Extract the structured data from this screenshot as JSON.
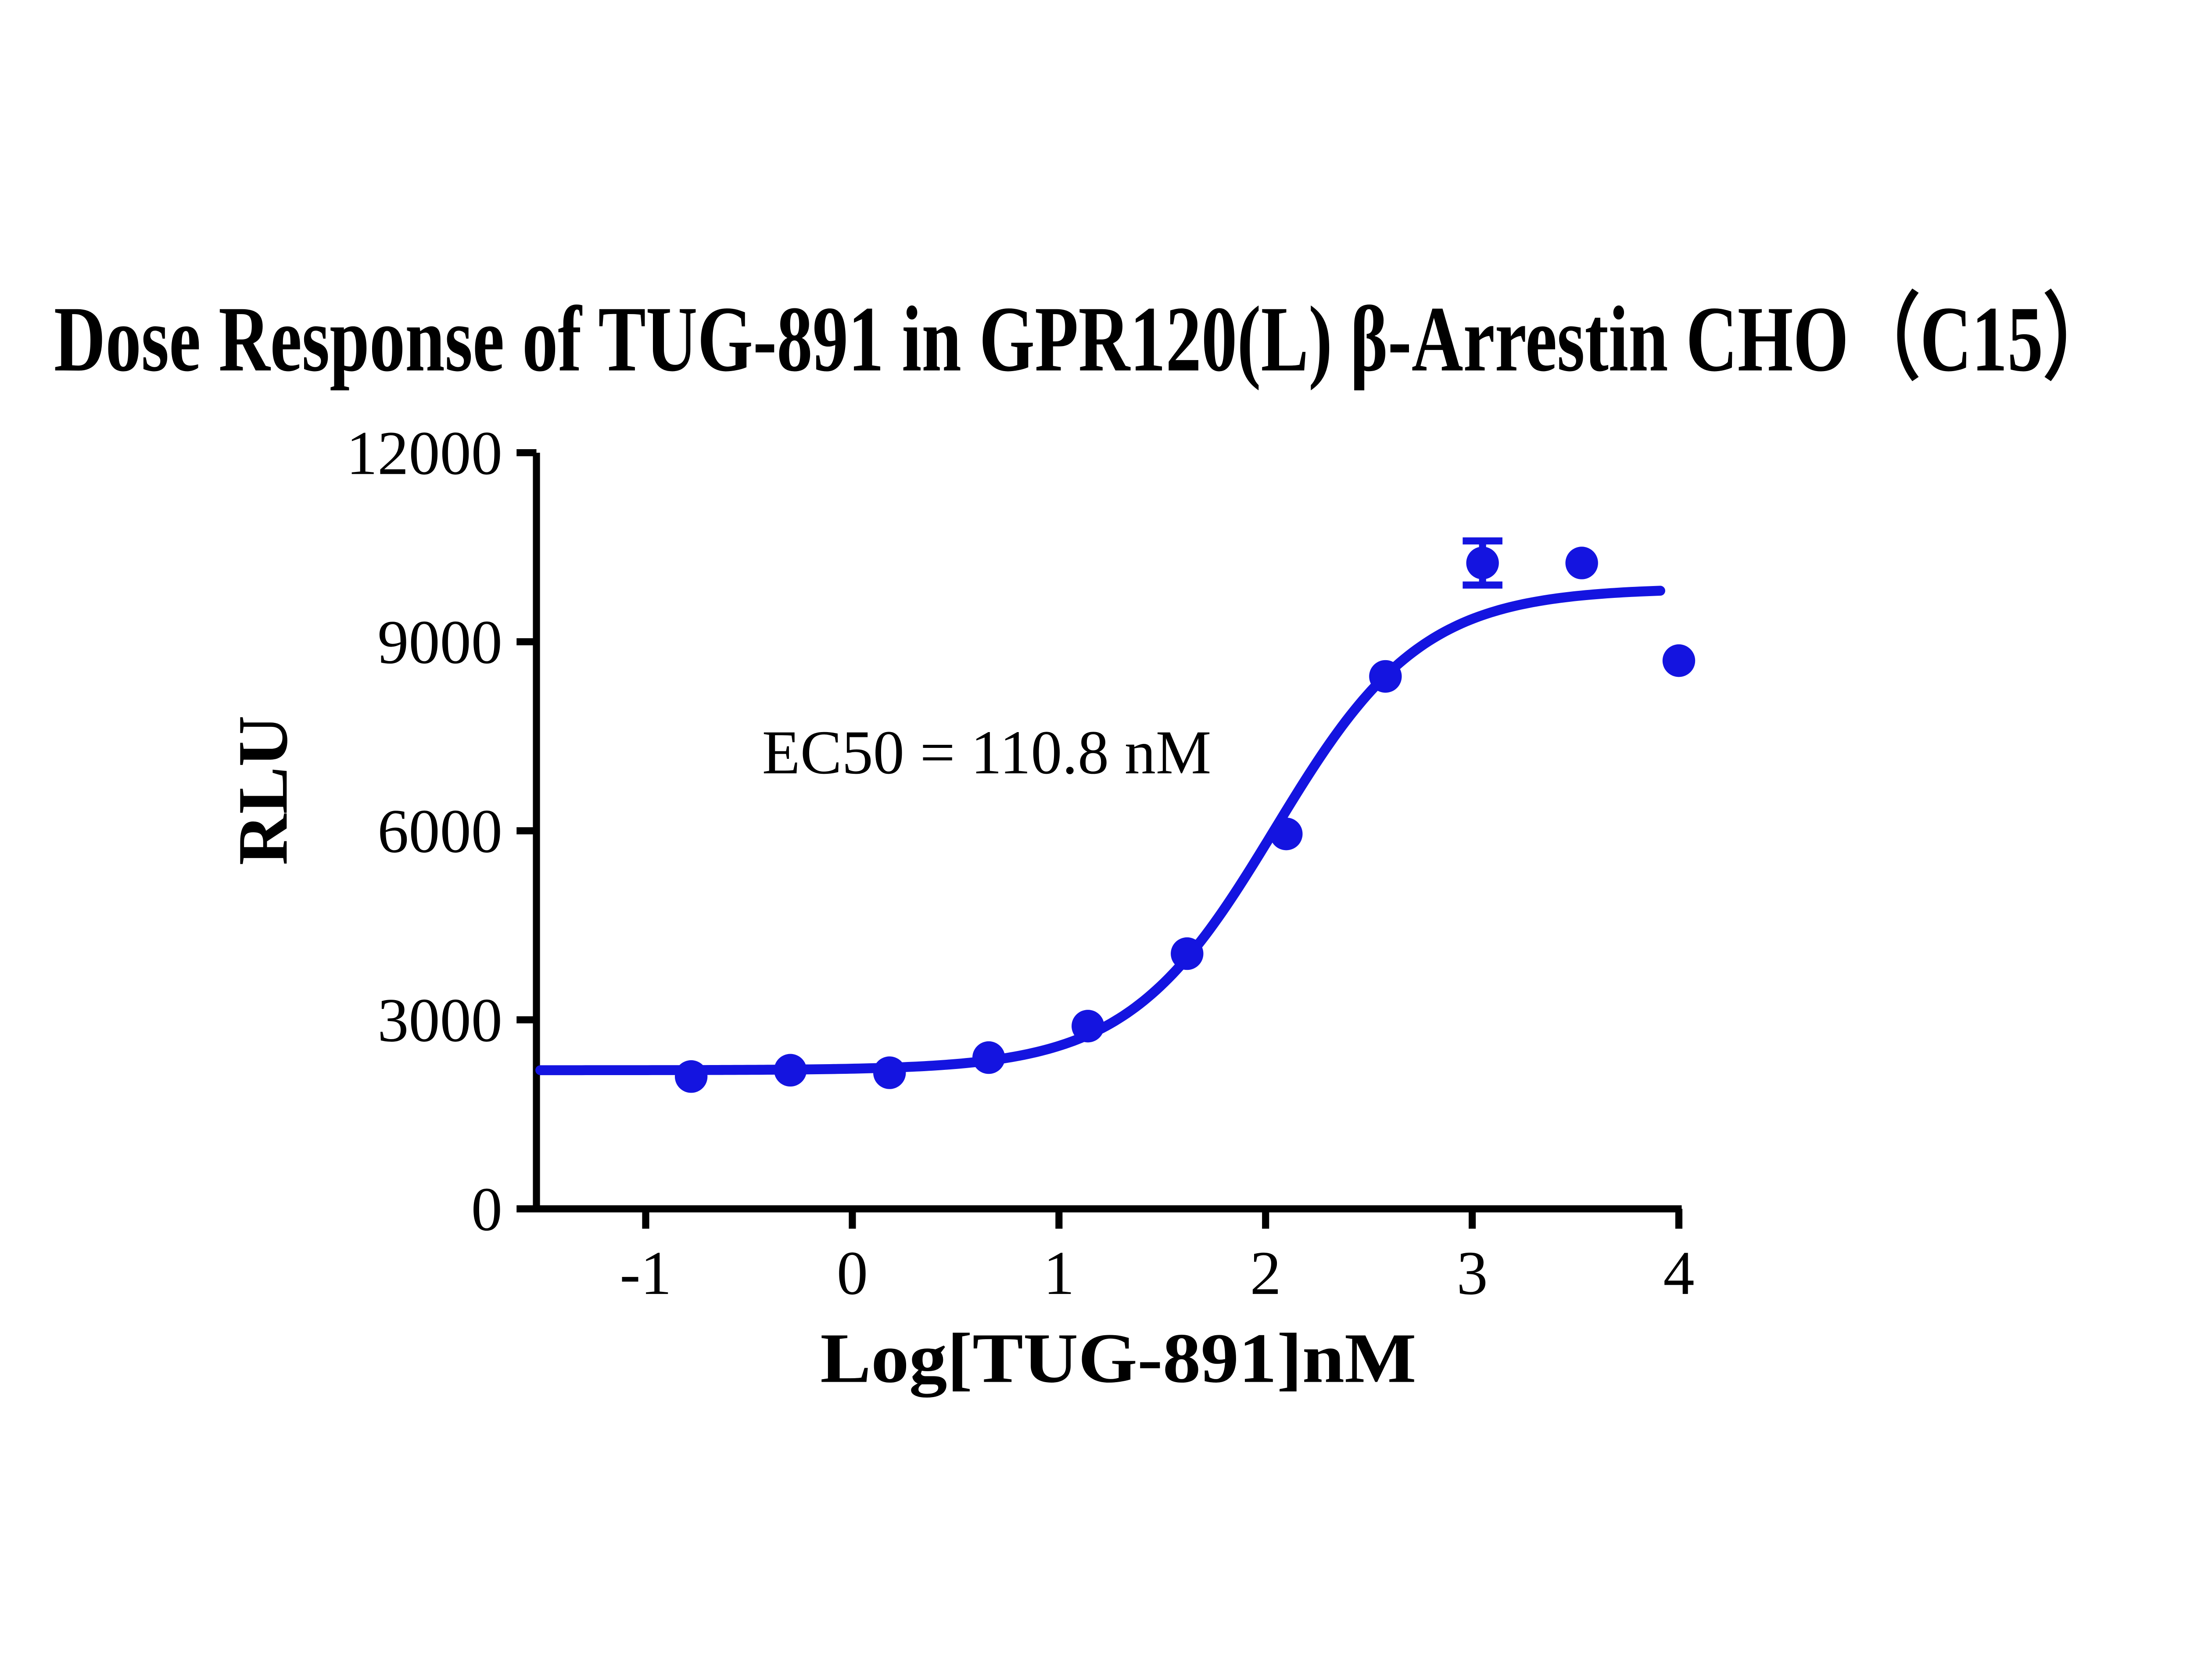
{
  "title": "Dose Response of TUG-891 in GPR120(L) β-Arrestin CHO（C15）",
  "annotation": "EC50 = 110.8 nM",
  "colors": {
    "series": "#1414e0",
    "axis": "#000000",
    "text": "#000000",
    "background": "#ffffff"
  },
  "chart_data": {
    "type": "scatter",
    "title": "Dose Response of TUG-891 in GPR120(L) β-Arrestin CHO（C15）",
    "xlabel": "Log[TUG-891]nM",
    "ylabel": "RLU",
    "annotation": "EC50 = 110.8 nM",
    "ec50_nM": 110.8,
    "xlim": [
      -1.51,
      4.07
    ],
    "ylim": [
      0,
      12000
    ],
    "xticks": [
      -1,
      0,
      1,
      2,
      3,
      4
    ],
    "yticks": [
      0,
      3000,
      6000,
      9000,
      12000
    ],
    "grid": false,
    "legend": "none",
    "series": [
      {
        "name": "TUG-891",
        "color": "#1414e0",
        "marker": "circle",
        "points": [
          {
            "x": -0.78,
            "y": 2100
          },
          {
            "x": -0.3,
            "y": 2200
          },
          {
            "x": 0.18,
            "y": 2160
          },
          {
            "x": 0.66,
            "y": 2400
          },
          {
            "x": 1.14,
            "y": 2900
          },
          {
            "x": 1.62,
            "y": 4050
          },
          {
            "x": 2.1,
            "y": 5950
          },
          {
            "x": 2.58,
            "y": 8450
          },
          {
            "x": 3.05,
            "y": 10250,
            "error": 350
          },
          {
            "x": 3.53,
            "y": 10250
          },
          {
            "x": 4.0,
            "y": 8700
          }
        ],
        "fit_curve": {
          "model": "4PL",
          "bottom": 2200,
          "top": 9850,
          "logEC50": 2.0445,
          "hill": 1.22,
          "x_start": -1.51,
          "x_end": 3.91
        }
      }
    ]
  }
}
